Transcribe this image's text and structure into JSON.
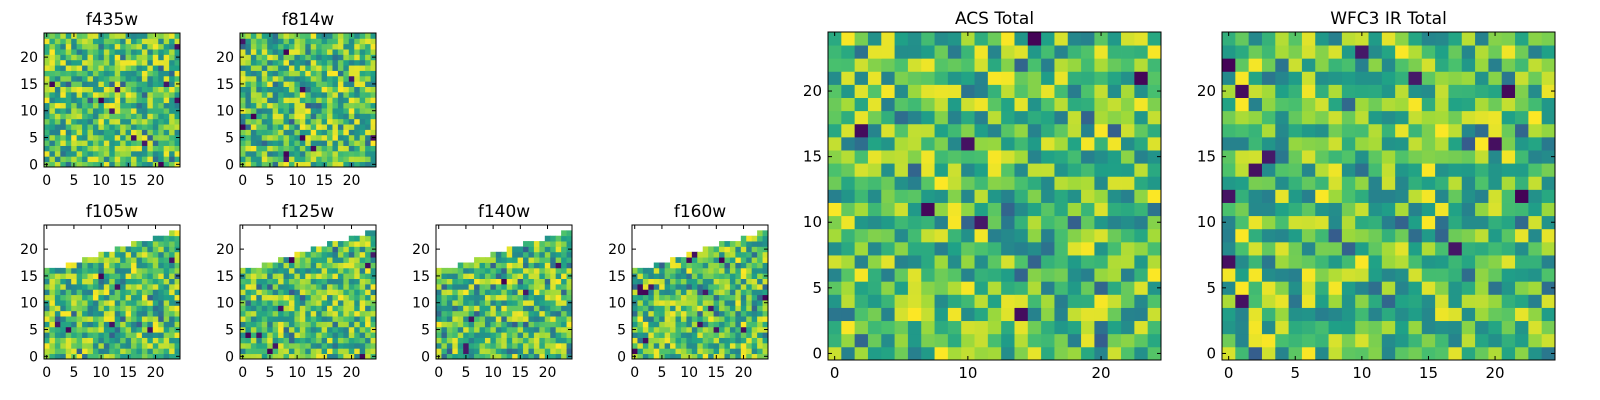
{
  "colormap": "viridis",
  "chart_data": [
    {
      "type": "heatmap",
      "title": "f435w",
      "xlabel": "",
      "ylabel": "",
      "xlim": [
        0,
        24
      ],
      "ylim": [
        0,
        24
      ],
      "xticks": [
        0,
        5,
        10,
        15,
        20
      ],
      "yticks": [
        0,
        5,
        10,
        15,
        20
      ],
      "grid": false,
      "value_range": "noise field, values near upper colormap range with a few low pixels"
    },
    {
      "type": "heatmap",
      "title": "f814w",
      "xlabel": "",
      "ylabel": "",
      "xlim": [
        0,
        24
      ],
      "ylim": [
        0,
        24
      ],
      "xticks": [
        0,
        5,
        10,
        15,
        20
      ],
      "yticks": [
        0,
        5,
        10,
        15,
        20
      ],
      "grid": false,
      "value_range": "noise field, values near upper colormap range with a few low pixels"
    },
    {
      "type": "heatmap",
      "title": "f105w",
      "xlabel": "",
      "ylabel": "",
      "xlim": [
        0,
        24
      ],
      "ylim": [
        0,
        24
      ],
      "xticks": [
        0,
        5,
        10,
        15,
        20
      ],
      "yticks": [
        0,
        5,
        10,
        15,
        20
      ],
      "grid": false,
      "coverage": "masked upper-left wedge (blank above diagonal edge)"
    },
    {
      "type": "heatmap",
      "title": "f125w",
      "xlabel": "",
      "ylabel": "",
      "xlim": [
        0,
        24
      ],
      "ylim": [
        0,
        24
      ],
      "xticks": [
        0,
        5,
        10,
        15,
        20
      ],
      "yticks": [
        0,
        5,
        10,
        15,
        20
      ],
      "grid": false,
      "coverage": "masked upper-left wedge (blank above diagonal edge)"
    },
    {
      "type": "heatmap",
      "title": "f140w",
      "xlabel": "",
      "ylabel": "",
      "xlim": [
        0,
        24
      ],
      "ylim": [
        0,
        24
      ],
      "xticks": [
        0,
        5,
        10,
        15,
        20
      ],
      "yticks": [
        0,
        5,
        10,
        15,
        20
      ],
      "grid": false,
      "coverage": "masked upper-left wedge (blank above diagonal edge)"
    },
    {
      "type": "heatmap",
      "title": "f160w",
      "xlabel": "",
      "ylabel": "",
      "xlim": [
        0,
        24
      ],
      "ylim": [
        0,
        24
      ],
      "xticks": [
        0,
        5,
        10,
        15,
        20
      ],
      "yticks": [
        0,
        5,
        10,
        15,
        20
      ],
      "grid": false,
      "coverage": "masked upper-left wedge (blank above diagonal edge)"
    },
    {
      "type": "heatmap",
      "title": "ACS Total",
      "xlabel": "",
      "ylabel": "",
      "xlim": [
        0,
        24
      ],
      "ylim": [
        0,
        24
      ],
      "xticks": [
        0,
        10,
        20
      ],
      "yticks": [
        0,
        5,
        10,
        15,
        20
      ],
      "grid": false,
      "value_range": "noise field, mostly green-yellow, scattered dark-purple pixels"
    },
    {
      "type": "heatmap",
      "title": "WFC3 IR Total",
      "xlabel": "",
      "ylabel": "",
      "xlim": [
        0,
        24
      ],
      "ylim": [
        0,
        24
      ],
      "xticks": [
        0,
        5,
        10,
        15,
        20
      ],
      "yticks": [
        0,
        5,
        10,
        15,
        20
      ],
      "grid": false,
      "value_range": "noise field, mostly green-yellow, dark cluster near x 3-7, y 8-13"
    }
  ]
}
